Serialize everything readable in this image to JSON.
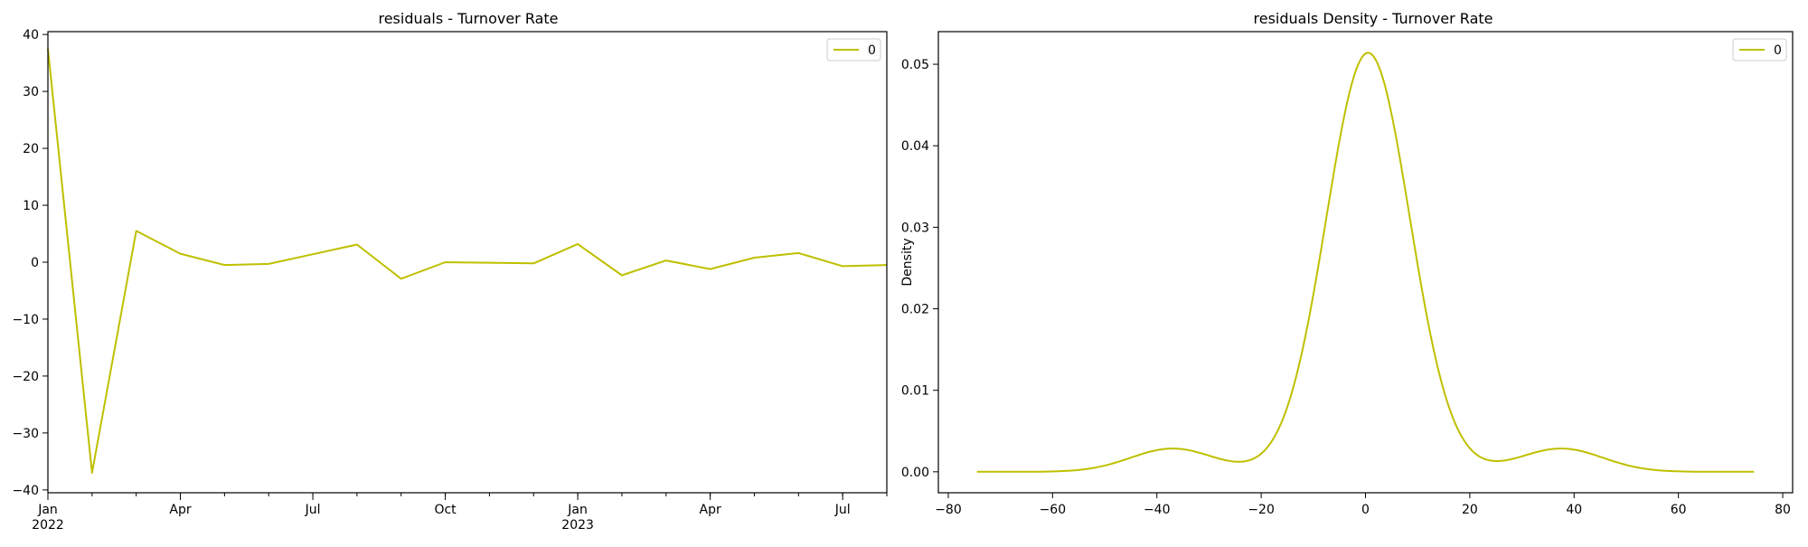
{
  "colors": {
    "series": "#bfbf00",
    "axes": "#000000",
    "background": "#ffffff"
  },
  "chart_data": [
    {
      "type": "line",
      "title": "residuals - Turnover Rate",
      "xlabel": "",
      "ylabel": "",
      "x": [
        "2022-01",
        "2022-02",
        "2022-03",
        "2022-04",
        "2022-05",
        "2022-06",
        "2022-07",
        "2022-08",
        "2022-09",
        "2022-10",
        "2022-11",
        "2022-12",
        "2023-01",
        "2023-02",
        "2023-03",
        "2023-04",
        "2023-05",
        "2023-06",
        "2023-07",
        "2023-08"
      ],
      "series": [
        {
          "name": "0",
          "values": [
            37.5,
            -37.0,
            5.5,
            1.5,
            -0.5,
            -0.3,
            1.4,
            3.1,
            -2.9,
            0.0,
            -0.1,
            -0.2,
            3.2,
            -2.3,
            0.3,
            -1.2,
            0.8,
            1.6,
            -0.7,
            -0.5
          ]
        }
      ],
      "ylim": [
        -40.5,
        40.5
      ],
      "yticks": [
        "40",
        "30",
        "20",
        "10",
        "0",
        "−10",
        "−20",
        "−30",
        "−40"
      ],
      "xticks": [
        {
          "label": "Jan",
          "sublabel": "2022",
          "x": "2022-01"
        },
        {
          "label": "Apr",
          "sublabel": "",
          "x": "2022-04"
        },
        {
          "label": "Jul",
          "sublabel": "",
          "x": "2022-07"
        },
        {
          "label": "Oct",
          "sublabel": "",
          "x": "2022-10"
        },
        {
          "label": "Jan",
          "sublabel": "2023",
          "x": "2023-01"
        },
        {
          "label": "Apr",
          "sublabel": "",
          "x": "2023-04"
        },
        {
          "label": "Jul",
          "sublabel": "",
          "x": "2023-07"
        }
      ],
      "legend": {
        "position": "top-right",
        "entries": [
          "0"
        ]
      },
      "grid": false
    },
    {
      "type": "line",
      "title": "residuals Density - Turnover Rate",
      "xlabel": "",
      "ylabel": "Density",
      "kde": {
        "components": [
          {
            "mean": 0.5,
            "sd": 8.0,
            "weight": 0.9
          },
          {
            "mean": -37.0,
            "sd": 8.0,
            "weight": 0.05
          },
          {
            "mean": 37.5,
            "sd": 8.0,
            "weight": 0.05
          }
        ],
        "x_range": [
          -74.5,
          74.5
        ],
        "peak": 0.0514
      },
      "series": [
        {
          "name": "0"
        }
      ],
      "xlim": [
        -81.9,
        81.9
      ],
      "ylim": [
        -0.00257,
        0.054
      ],
      "xticks": [
        "−80",
        "−60",
        "−40",
        "−20",
        "0",
        "20",
        "40",
        "60",
        "80"
      ],
      "yticks": [
        "0.00",
        "0.01",
        "0.02",
        "0.03",
        "0.04",
        "0.05"
      ],
      "legend": {
        "position": "top-right",
        "entries": [
          "0"
        ]
      },
      "grid": false
    }
  ]
}
